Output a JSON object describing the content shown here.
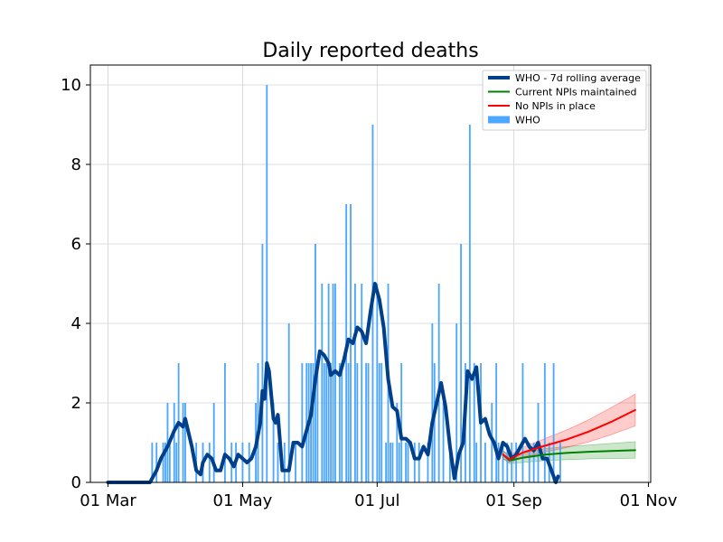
{
  "chart_data": {
    "type": "bar+line",
    "title": "Daily reported deaths",
    "xlabel": "",
    "ylabel": "",
    "x_ticks": [
      "01 Mar",
      "01 May",
      "01 Jul",
      "01 Sep",
      "01 Nov"
    ],
    "y_ticks": [
      "0",
      "2",
      "4",
      "6",
      "8",
      "10"
    ],
    "xlim": [
      "2020-02-22",
      "2020-11-02"
    ],
    "ylim": [
      0,
      10.5
    ],
    "grid": true,
    "legend_position": "top-right",
    "legend": [
      {
        "label": "WHO - 7d rolling average",
        "kind": "thick-line",
        "color": "#003f8a"
      },
      {
        "label": "Current NPIs maintained",
        "kind": "line",
        "color": "#008000"
      },
      {
        "label": "No NPIs in place",
        "kind": "line",
        "color": "#ff0000"
      },
      {
        "label": "WHO",
        "kind": "bar",
        "color": "#4da6ff"
      }
    ],
    "series": [
      {
        "name": "WHO",
        "type": "bar",
        "color": "#4da6ff",
        "points": [
          {
            "x": "2020-03-21",
            "y": 1
          },
          {
            "x": "2020-03-23",
            "y": 1
          },
          {
            "x": "2020-03-26",
            "y": 1
          },
          {
            "x": "2020-03-27",
            "y": 1
          },
          {
            "x": "2020-03-28",
            "y": 2
          },
          {
            "x": "2020-03-29",
            "y": 1
          },
          {
            "x": "2020-03-31",
            "y": 2
          },
          {
            "x": "2020-04-01",
            "y": 1
          },
          {
            "x": "2020-04-02",
            "y": 3
          },
          {
            "x": "2020-04-04",
            "y": 2
          },
          {
            "x": "2020-04-05",
            "y": 2
          },
          {
            "x": "2020-04-10",
            "y": 1
          },
          {
            "x": "2020-04-13",
            "y": 1
          },
          {
            "x": "2020-04-16",
            "y": 1
          },
          {
            "x": "2020-04-18",
            "y": 2
          },
          {
            "x": "2020-04-23",
            "y": 3
          },
          {
            "x": "2020-04-26",
            "y": 1
          },
          {
            "x": "2020-04-28",
            "y": 1
          },
          {
            "x": "2020-05-01",
            "y": 1
          },
          {
            "x": "2020-05-04",
            "y": 1
          },
          {
            "x": "2020-05-07",
            "y": 2
          },
          {
            "x": "2020-05-08",
            "y": 3
          },
          {
            "x": "2020-05-10",
            "y": 6
          },
          {
            "x": "2020-05-12",
            "y": 10
          },
          {
            "x": "2020-05-15",
            "y": 2
          },
          {
            "x": "2020-05-17",
            "y": 1
          },
          {
            "x": "2020-05-20",
            "y": 1
          },
          {
            "x": "2020-05-22",
            "y": 4
          },
          {
            "x": "2020-05-25",
            "y": 1
          },
          {
            "x": "2020-05-28",
            "y": 3
          },
          {
            "x": "2020-05-30",
            "y": 3
          },
          {
            "x": "2020-05-31",
            "y": 3
          },
          {
            "x": "2020-06-01",
            "y": 3
          },
          {
            "x": "2020-06-02",
            "y": 3
          },
          {
            "x": "2020-06-03",
            "y": 6
          },
          {
            "x": "2020-06-04",
            "y": 3
          },
          {
            "x": "2020-06-06",
            "y": 5
          },
          {
            "x": "2020-06-07",
            "y": 3
          },
          {
            "x": "2020-06-08",
            "y": 3
          },
          {
            "x": "2020-06-09",
            "y": 5
          },
          {
            "x": "2020-06-10",
            "y": 3
          },
          {
            "x": "2020-06-11",
            "y": 5
          },
          {
            "x": "2020-06-12",
            "y": 5
          },
          {
            "x": "2020-06-14",
            "y": 3
          },
          {
            "x": "2020-06-15",
            "y": 3
          },
          {
            "x": "2020-06-17",
            "y": 7
          },
          {
            "x": "2020-06-18",
            "y": 3
          },
          {
            "x": "2020-06-19",
            "y": 7
          },
          {
            "x": "2020-06-21",
            "y": 5
          },
          {
            "x": "2020-06-22",
            "y": 3
          },
          {
            "x": "2020-06-24",
            "y": 5
          },
          {
            "x": "2020-06-26",
            "y": 3
          },
          {
            "x": "2020-06-27",
            "y": 3
          },
          {
            "x": "2020-06-29",
            "y": 9
          },
          {
            "x": "2020-07-01",
            "y": 5
          },
          {
            "x": "2020-07-02",
            "y": 3
          },
          {
            "x": "2020-07-03",
            "y": 3
          },
          {
            "x": "2020-07-05",
            "y": 1
          },
          {
            "x": "2020-07-06",
            "y": 5
          },
          {
            "x": "2020-07-07",
            "y": 1
          },
          {
            "x": "2020-07-08",
            "y": 1
          },
          {
            "x": "2020-07-10",
            "y": 2
          },
          {
            "x": "2020-07-11",
            "y": 1
          },
          {
            "x": "2020-07-12",
            "y": 3
          },
          {
            "x": "2020-07-14",
            "y": 1
          },
          {
            "x": "2020-07-15",
            "y": 1
          },
          {
            "x": "2020-07-18",
            "y": 1
          },
          {
            "x": "2020-07-20",
            "y": 1
          },
          {
            "x": "2020-07-24",
            "y": 1
          },
          {
            "x": "2020-07-26",
            "y": 4
          },
          {
            "x": "2020-07-27",
            "y": 3
          },
          {
            "x": "2020-07-29",
            "y": 5
          },
          {
            "x": "2020-07-31",
            "y": 2
          },
          {
            "x": "2020-08-03",
            "y": 1
          },
          {
            "x": "2020-08-06",
            "y": 4
          },
          {
            "x": "2020-08-08",
            "y": 6
          },
          {
            "x": "2020-08-10",
            "y": 3
          },
          {
            "x": "2020-08-12",
            "y": 9
          },
          {
            "x": "2020-08-14",
            "y": 3
          },
          {
            "x": "2020-08-15",
            "y": 1
          },
          {
            "x": "2020-08-17",
            "y": 3
          },
          {
            "x": "2020-08-19",
            "y": 1
          },
          {
            "x": "2020-08-22",
            "y": 2
          },
          {
            "x": "2020-08-24",
            "y": 3
          },
          {
            "x": "2020-08-25",
            "y": 1
          },
          {
            "x": "2020-08-27",
            "y": 1
          },
          {
            "x": "2020-08-29",
            "y": 1
          },
          {
            "x": "2020-08-31",
            "y": 1
          },
          {
            "x": "2020-09-02",
            "y": 1
          },
          {
            "x": "2020-09-05",
            "y": 3
          },
          {
            "x": "2020-09-08",
            "y": 1
          },
          {
            "x": "2020-09-10",
            "y": 1
          },
          {
            "x": "2020-09-12",
            "y": 2
          },
          {
            "x": "2020-09-15",
            "y": 3
          },
          {
            "x": "2020-09-17",
            "y": 1
          },
          {
            "x": "2020-09-19",
            "y": 3
          },
          {
            "x": "2020-09-22",
            "y": 1
          }
        ]
      },
      {
        "name": "WHO - 7d rolling average",
        "type": "line",
        "color": "#003f8a",
        "points": [
          {
            "x": "2020-03-01",
            "y": 0
          },
          {
            "x": "2020-03-20",
            "y": 0
          },
          {
            "x": "2020-03-23",
            "y": 0.3
          },
          {
            "x": "2020-03-25",
            "y": 0.6
          },
          {
            "x": "2020-03-28",
            "y": 0.9
          },
          {
            "x": "2020-03-31",
            "y": 1.3
          },
          {
            "x": "2020-04-02",
            "y": 1.5
          },
          {
            "x": "2020-04-04",
            "y": 1.4
          },
          {
            "x": "2020-04-05",
            "y": 1.6
          },
          {
            "x": "2020-04-08",
            "y": 0.9
          },
          {
            "x": "2020-04-10",
            "y": 0.3
          },
          {
            "x": "2020-04-12",
            "y": 0.2
          },
          {
            "x": "2020-04-13",
            "y": 0.5
          },
          {
            "x": "2020-04-15",
            "y": 0.7
          },
          {
            "x": "2020-04-17",
            "y": 0.6
          },
          {
            "x": "2020-04-19",
            "y": 0.3
          },
          {
            "x": "2020-04-21",
            "y": 0.3
          },
          {
            "x": "2020-04-23",
            "y": 0.7
          },
          {
            "x": "2020-04-25",
            "y": 0.6
          },
          {
            "x": "2020-04-27",
            "y": 0.4
          },
          {
            "x": "2020-04-29",
            "y": 0.7
          },
          {
            "x": "2020-05-01",
            "y": 0.6
          },
          {
            "x": "2020-05-03",
            "y": 0.5
          },
          {
            "x": "2020-05-05",
            "y": 0.6
          },
          {
            "x": "2020-05-07",
            "y": 0.9
          },
          {
            "x": "2020-05-09",
            "y": 1.5
          },
          {
            "x": "2020-05-10",
            "y": 2.3
          },
          {
            "x": "2020-05-11",
            "y": 2.1
          },
          {
            "x": "2020-05-12",
            "y": 3.0
          },
          {
            "x": "2020-05-13",
            "y": 2.8
          },
          {
            "x": "2020-05-15",
            "y": 1.6
          },
          {
            "x": "2020-05-16",
            "y": 1.5
          },
          {
            "x": "2020-05-17",
            "y": 1.7
          },
          {
            "x": "2020-05-19",
            "y": 0.3
          },
          {
            "x": "2020-05-22",
            "y": 0.3
          },
          {
            "x": "2020-05-24",
            "y": 1.0
          },
          {
            "x": "2020-05-26",
            "y": 1.0
          },
          {
            "x": "2020-05-28",
            "y": 0.9
          },
          {
            "x": "2020-05-30",
            "y": 1.3
          },
          {
            "x": "2020-06-01",
            "y": 1.7
          },
          {
            "x": "2020-06-03",
            "y": 2.6
          },
          {
            "x": "2020-06-05",
            "y": 3.3
          },
          {
            "x": "2020-06-07",
            "y": 3.2
          },
          {
            "x": "2020-06-09",
            "y": 3.0
          },
          {
            "x": "2020-06-10",
            "y": 2.7
          },
          {
            "x": "2020-06-12",
            "y": 2.8
          },
          {
            "x": "2020-06-14",
            "y": 2.7
          },
          {
            "x": "2020-06-16",
            "y": 3.1
          },
          {
            "x": "2020-06-18",
            "y": 3.6
          },
          {
            "x": "2020-06-20",
            "y": 3.5
          },
          {
            "x": "2020-06-22",
            "y": 3.9
          },
          {
            "x": "2020-06-24",
            "y": 3.8
          },
          {
            "x": "2020-06-26",
            "y": 3.5
          },
          {
            "x": "2020-06-28",
            "y": 4.3
          },
          {
            "x": "2020-06-30",
            "y": 5.0
          },
          {
            "x": "2020-07-02",
            "y": 4.6
          },
          {
            "x": "2020-07-04",
            "y": 3.9
          },
          {
            "x": "2020-07-06",
            "y": 2.6
          },
          {
            "x": "2020-07-08",
            "y": 1.9
          },
          {
            "x": "2020-07-10",
            "y": 1.8
          },
          {
            "x": "2020-07-12",
            "y": 1.1
          },
          {
            "x": "2020-07-14",
            "y": 1.1
          },
          {
            "x": "2020-07-16",
            "y": 1.0
          },
          {
            "x": "2020-07-18",
            "y": 0.6
          },
          {
            "x": "2020-07-20",
            "y": 0.6
          },
          {
            "x": "2020-07-22",
            "y": 0.9
          },
          {
            "x": "2020-07-24",
            "y": 0.7
          },
          {
            "x": "2020-07-26",
            "y": 1.5
          },
          {
            "x": "2020-07-28",
            "y": 2.0
          },
          {
            "x": "2020-07-30",
            "y": 2.5
          },
          {
            "x": "2020-08-01",
            "y": 1.9
          },
          {
            "x": "2020-08-03",
            "y": 0.9
          },
          {
            "x": "2020-08-05",
            "y": 0.1
          },
          {
            "x": "2020-08-07",
            "y": 0.7
          },
          {
            "x": "2020-08-09",
            "y": 1.0
          },
          {
            "x": "2020-08-11",
            "y": 2.8
          },
          {
            "x": "2020-08-13",
            "y": 2.6
          },
          {
            "x": "2020-08-15",
            "y": 2.9
          },
          {
            "x": "2020-08-17",
            "y": 1.5
          },
          {
            "x": "2020-08-19",
            "y": 1.6
          },
          {
            "x": "2020-08-21",
            "y": 1.2
          },
          {
            "x": "2020-08-23",
            "y": 1.0
          },
          {
            "x": "2020-08-25",
            "y": 0.6
          },
          {
            "x": "2020-08-27",
            "y": 1.0
          },
          {
            "x": "2020-08-29",
            "y": 0.9
          },
          {
            "x": "2020-08-31",
            "y": 0.6
          },
          {
            "x": "2020-09-02",
            "y": 0.7
          },
          {
            "x": "2020-09-04",
            "y": 0.9
          },
          {
            "x": "2020-09-06",
            "y": 1.1
          },
          {
            "x": "2020-09-08",
            "y": 0.9
          },
          {
            "x": "2020-09-10",
            "y": 0.8
          },
          {
            "x": "2020-09-12",
            "y": 1.0
          },
          {
            "x": "2020-09-14",
            "y": 0.6
          },
          {
            "x": "2020-09-16",
            "y": 0.6
          },
          {
            "x": "2020-09-18",
            "y": 0.3
          },
          {
            "x": "2020-09-20",
            "y": 0.0
          },
          {
            "x": "2020-09-21",
            "y": 0.15
          }
        ]
      },
      {
        "name": "Current NPIs maintained",
        "type": "line",
        "color": "#008000",
        "band_color": "#008000",
        "points": [
          {
            "x": "2020-08-27",
            "y": 0.7
          },
          {
            "x": "2020-08-30",
            "y": 0.55
          },
          {
            "x": "2020-09-05",
            "y": 0.62
          },
          {
            "x": "2020-09-15",
            "y": 0.7
          },
          {
            "x": "2020-09-25",
            "y": 0.74
          },
          {
            "x": "2020-10-05",
            "y": 0.77
          },
          {
            "x": "2020-10-15",
            "y": 0.79
          },
          {
            "x": "2020-10-26",
            "y": 0.81
          }
        ],
        "band_lower": [
          0.6,
          0.47,
          0.5,
          0.55,
          0.57,
          0.59,
          0.6,
          0.61
        ],
        "band_upper": [
          0.8,
          0.65,
          0.74,
          0.85,
          0.9,
          0.94,
          0.98,
          1.02
        ]
      },
      {
        "name": "No NPIs in place",
        "type": "line",
        "color": "#ff0000",
        "band_color": "#ff0000",
        "points": [
          {
            "x": "2020-08-27",
            "y": 0.7
          },
          {
            "x": "2020-08-30",
            "y": 0.58
          },
          {
            "x": "2020-09-05",
            "y": 0.75
          },
          {
            "x": "2020-09-15",
            "y": 0.92
          },
          {
            "x": "2020-09-25",
            "y": 1.08
          },
          {
            "x": "2020-10-05",
            "y": 1.28
          },
          {
            "x": "2020-10-15",
            "y": 1.52
          },
          {
            "x": "2020-10-26",
            "y": 1.82
          }
        ],
        "band_lower": [
          0.6,
          0.5,
          0.63,
          0.76,
          0.88,
          1.02,
          1.2,
          1.42
        ],
        "band_upper": [
          0.8,
          0.68,
          0.88,
          1.1,
          1.32,
          1.58,
          1.88,
          2.22
        ]
      }
    ]
  }
}
